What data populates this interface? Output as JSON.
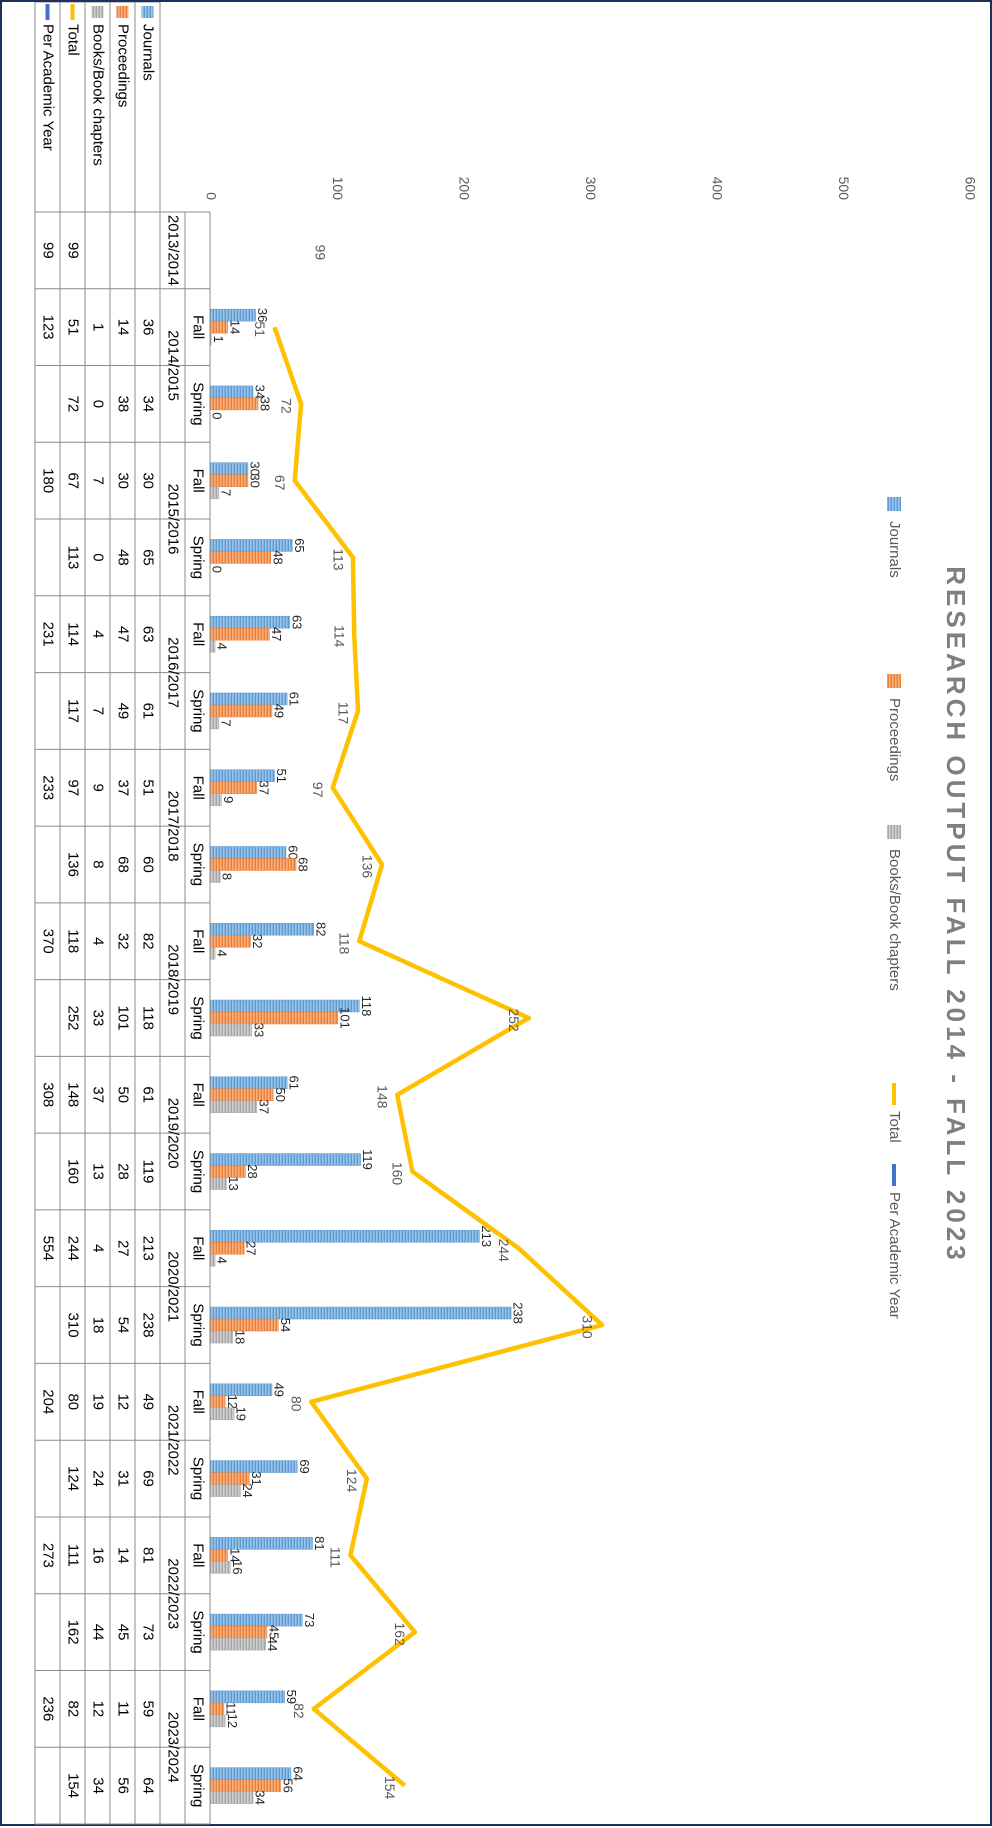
{
  "chart_data": {
    "type": "bar",
    "title": "RESEARCH OUTPUT FALL 2014 - FALL 2023",
    "orientation": "rotated 90 degrees clockwise",
    "ylim": [
      0,
      600
    ],
    "yticks": [
      "0",
      "100",
      "200",
      "300",
      "400",
      "500",
      "600"
    ],
    "legend_position": "top",
    "years": [
      "2013/2014",
      "2014/2015",
      "2015/2016",
      "2016/2017",
      "2017/2018",
      "2018/2019",
      "2019/2020",
      "2020/2021",
      "2021/2022",
      "2022/2023",
      "2023/2024"
    ],
    "categories": [
      "",
      "Fall",
      "Spring",
      "Fall",
      "Spring",
      "Fall",
      "Spring",
      "Fall",
      "Spring",
      "Fall",
      "Spring",
      "Fall",
      "Spring",
      "Fall",
      "Spring",
      "Fall",
      "Spring",
      "Fall",
      "Spring",
      "Fall",
      "Spring"
    ],
    "series": [
      {
        "name": "Journals",
        "type": "bar",
        "color": "#5b9bd5",
        "values": [
          null,
          36,
          34,
          30,
          65,
          63,
          61,
          51,
          60,
          82,
          118,
          61,
          119,
          213,
          238,
          49,
          69,
          81,
          73,
          59,
          64
        ]
      },
      {
        "name": "Proceedings",
        "type": "bar",
        "color": "#ed7d31",
        "values": [
          null,
          14,
          38,
          30,
          48,
          47,
          49,
          37,
          68,
          32,
          101,
          50,
          28,
          27,
          54,
          12,
          31,
          14,
          45,
          11,
          56
        ]
      },
      {
        "name": "Books/Book chapters",
        "type": "bar",
        "color": "#a5a5a5",
        "values": [
          null,
          1,
          0,
          7,
          0,
          4,
          7,
          9,
          8,
          4,
          33,
          37,
          13,
          4,
          18,
          19,
          24,
          16,
          44,
          12,
          34
        ]
      },
      {
        "name": "Total",
        "type": "line",
        "color": "#ffc000",
        "values": [
          99,
          51,
          72,
          67,
          113,
          114,
          117,
          97,
          136,
          118,
          252,
          148,
          160,
          244,
          310,
          80,
          124,
          111,
          162,
          82,
          154
        ]
      },
      {
        "name": "Per Academic Year",
        "type": "line",
        "color": "#4472c4",
        "values": [
          99,
          123,
          null,
          180,
          null,
          231,
          null,
          233,
          null,
          370,
          null,
          308,
          null,
          554,
          null,
          204,
          null,
          273,
          null,
          236,
          null
        ]
      }
    ],
    "table_bar_labels": {
      "Journals": [
        "",
        "36",
        "34",
        "30",
        "65",
        "63",
        "61",
        "51",
        "60",
        "82",
        "118",
        "61",
        "119",
        "213",
        "238",
        "49",
        "69",
        "81",
        "73",
        "59",
        "64"
      ],
      "Proceedings": [
        "",
        "14",
        "38",
        "30",
        "48",
        "47",
        "49",
        "37",
        "68",
        "32",
        "101",
        "50",
        "28",
        "27",
        "54",
        "12",
        "31",
        "14",
        "45",
        "11",
        "56"
      ],
      "Books/Book chapters": [
        "",
        "1",
        "0",
        "7",
        "0",
        "4",
        "7",
        "9",
        "8",
        "4",
        "33",
        "37",
        "13",
        "4",
        "18",
        "19",
        "24",
        "16",
        "44",
        "12",
        "34"
      ],
      "Total": [
        "99",
        "51",
        "72",
        "67",
        "113",
        "114",
        "117",
        "97",
        "136",
        "118",
        "252",
        "148",
        "160",
        "244",
        "310",
        "80",
        "124",
        "111",
        "162",
        "82",
        "154"
      ],
      "Per Academic Year": [
        "99",
        "123",
        "",
        "180",
        "",
        "231",
        "",
        "233",
        "",
        "370",
        "",
        "308",
        "",
        "554",
        "",
        "204",
        "",
        "273",
        "",
        "236",
        ""
      ]
    }
  }
}
